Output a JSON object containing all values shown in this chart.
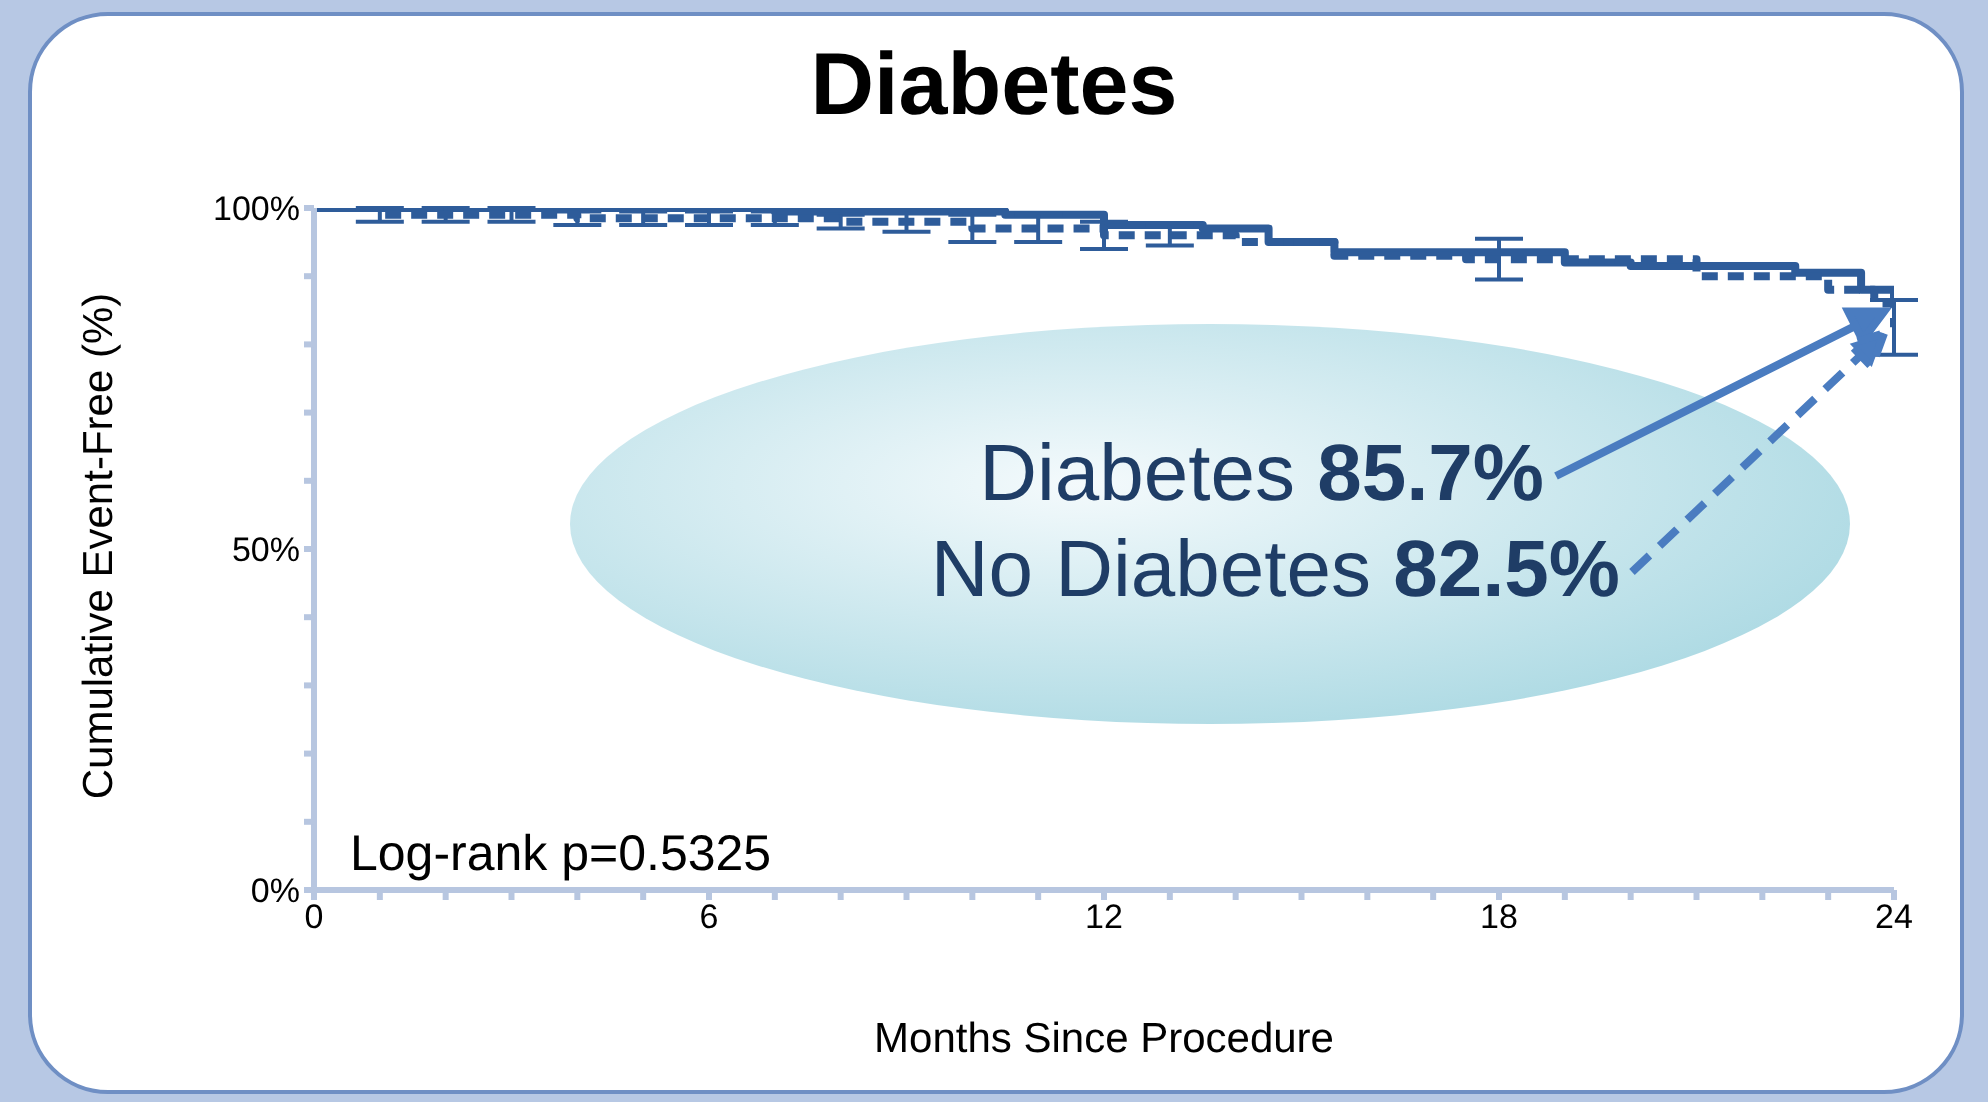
{
  "chart_data": {
    "type": "step",
    "title": "Diabetes",
    "xlabel": "Months Since Procedure",
    "ylabel": "Cumulative Event-Free (%)",
    "xlim": [
      0,
      24
    ],
    "xticks": [
      0,
      {
        "value": 1,
        "label": null
      },
      {
        "value": 2,
        "label": null
      },
      {
        "value": 3,
        "label": null
      },
      {
        "value": 4,
        "label": null
      },
      {
        "value": 5,
        "label": null
      },
      6,
      {
        "value": 7,
        "label": null
      },
      {
        "value": 8,
        "label": null
      },
      {
        "value": 9,
        "label": null
      },
      {
        "value": 10,
        "label": null
      },
      {
        "value": 11,
        "label": null
      },
      12,
      {
        "value": 13,
        "label": null
      },
      {
        "value": 14,
        "label": null
      },
      {
        "value": 15,
        "label": null
      },
      {
        "value": 16,
        "label": null
      },
      {
        "value": 17,
        "label": null
      },
      18,
      {
        "value": 19,
        "label": null
      },
      {
        "value": 20,
        "label": null
      },
      {
        "value": 21,
        "label": null
      },
      {
        "value": 22,
        "label": null
      },
      {
        "value": 23,
        "label": null
      },
      24
    ],
    "ylim": [
      0,
      100
    ],
    "yticks": [
      {
        "value": 0,
        "label": "0%"
      },
      {
        "value": 10,
        "label": null
      },
      {
        "value": 20,
        "label": null
      },
      {
        "value": 30,
        "label": null
      },
      {
        "value": 40,
        "label": null
      },
      {
        "value": 50,
        "label": "50%"
      },
      {
        "value": 60,
        "label": null
      },
      {
        "value": 70,
        "label": null
      },
      {
        "value": 80,
        "label": null
      },
      {
        "value": 90,
        "label": null
      },
      {
        "value": 100,
        "label": "100%"
      }
    ],
    "grid": false,
    "legend": false,
    "marker": "none",
    "series": [
      {
        "color": "#2e5c9a",
        "line_style": "solid",
        "x": [
          0,
          6,
          7,
          10.5,
          12,
          13.5,
          14.5,
          15.5,
          19,
          20,
          22.5,
          23.5,
          24
        ],
        "values": [
          100,
          100,
          99.5,
          99,
          97.5,
          97,
          95,
          93.5,
          92,
          91.5,
          90.5,
          88,
          85.7
        ]
      },
      {
        "color": "#2e5c9a",
        "line_style": "dashed",
        "x": [
          0,
          1,
          2,
          3,
          4,
          5,
          6,
          7,
          8,
          9,
          10,
          11,
          12,
          13,
          14,
          15.5,
          17.5,
          18,
          21,
          23,
          23.7,
          24
        ],
        "values": [
          100,
          99,
          99,
          99,
          98.5,
          98.5,
          98.5,
          98.5,
          98,
          98,
          97,
          97,
          96,
          96,
          95,
          93,
          92.5,
          92.5,
          90,
          88,
          86,
          82.5
        ],
        "errors": [
          null,
          1,
          1,
          1,
          1,
          1,
          1,
          1,
          1,
          1.5,
          2,
          2,
          2,
          1.5,
          null,
          null,
          null,
          3,
          null,
          null,
          null,
          4
        ]
      }
    ],
    "annotations": [
      "Diabetes 85.7%",
      "No Diabetes 82.5%",
      "Log-rank p=0.5325"
    ]
  }
}
